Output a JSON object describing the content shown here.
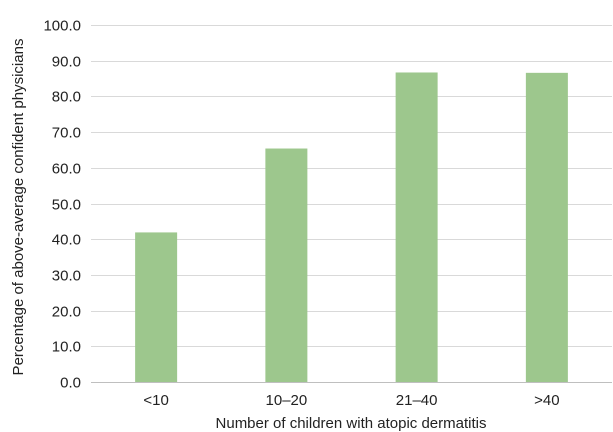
{
  "chart_data": {
    "type": "bar",
    "categories": [
      "<10",
      "10–20",
      "21–40",
      ">40"
    ],
    "values": [
      41.9,
      65.4,
      86.7,
      86.6
    ],
    "title": "",
    "xlabel": "Number of children with atopic dermatitis",
    "ylabel": "Percentage of above-average confident physicians",
    "ylim": [
      0,
      100
    ],
    "yticks": [
      "0.0",
      "10.0",
      "20.0",
      "30.0",
      "40.0",
      "50.0",
      "60.0",
      "70.0",
      "80.0",
      "90.0",
      "100.0"
    ],
    "ytick_values": [
      0,
      10,
      20,
      30,
      40,
      50,
      60,
      70,
      80,
      90,
      100
    ],
    "grid": true,
    "legend": "none",
    "bar_color": "#9dc78d"
  }
}
